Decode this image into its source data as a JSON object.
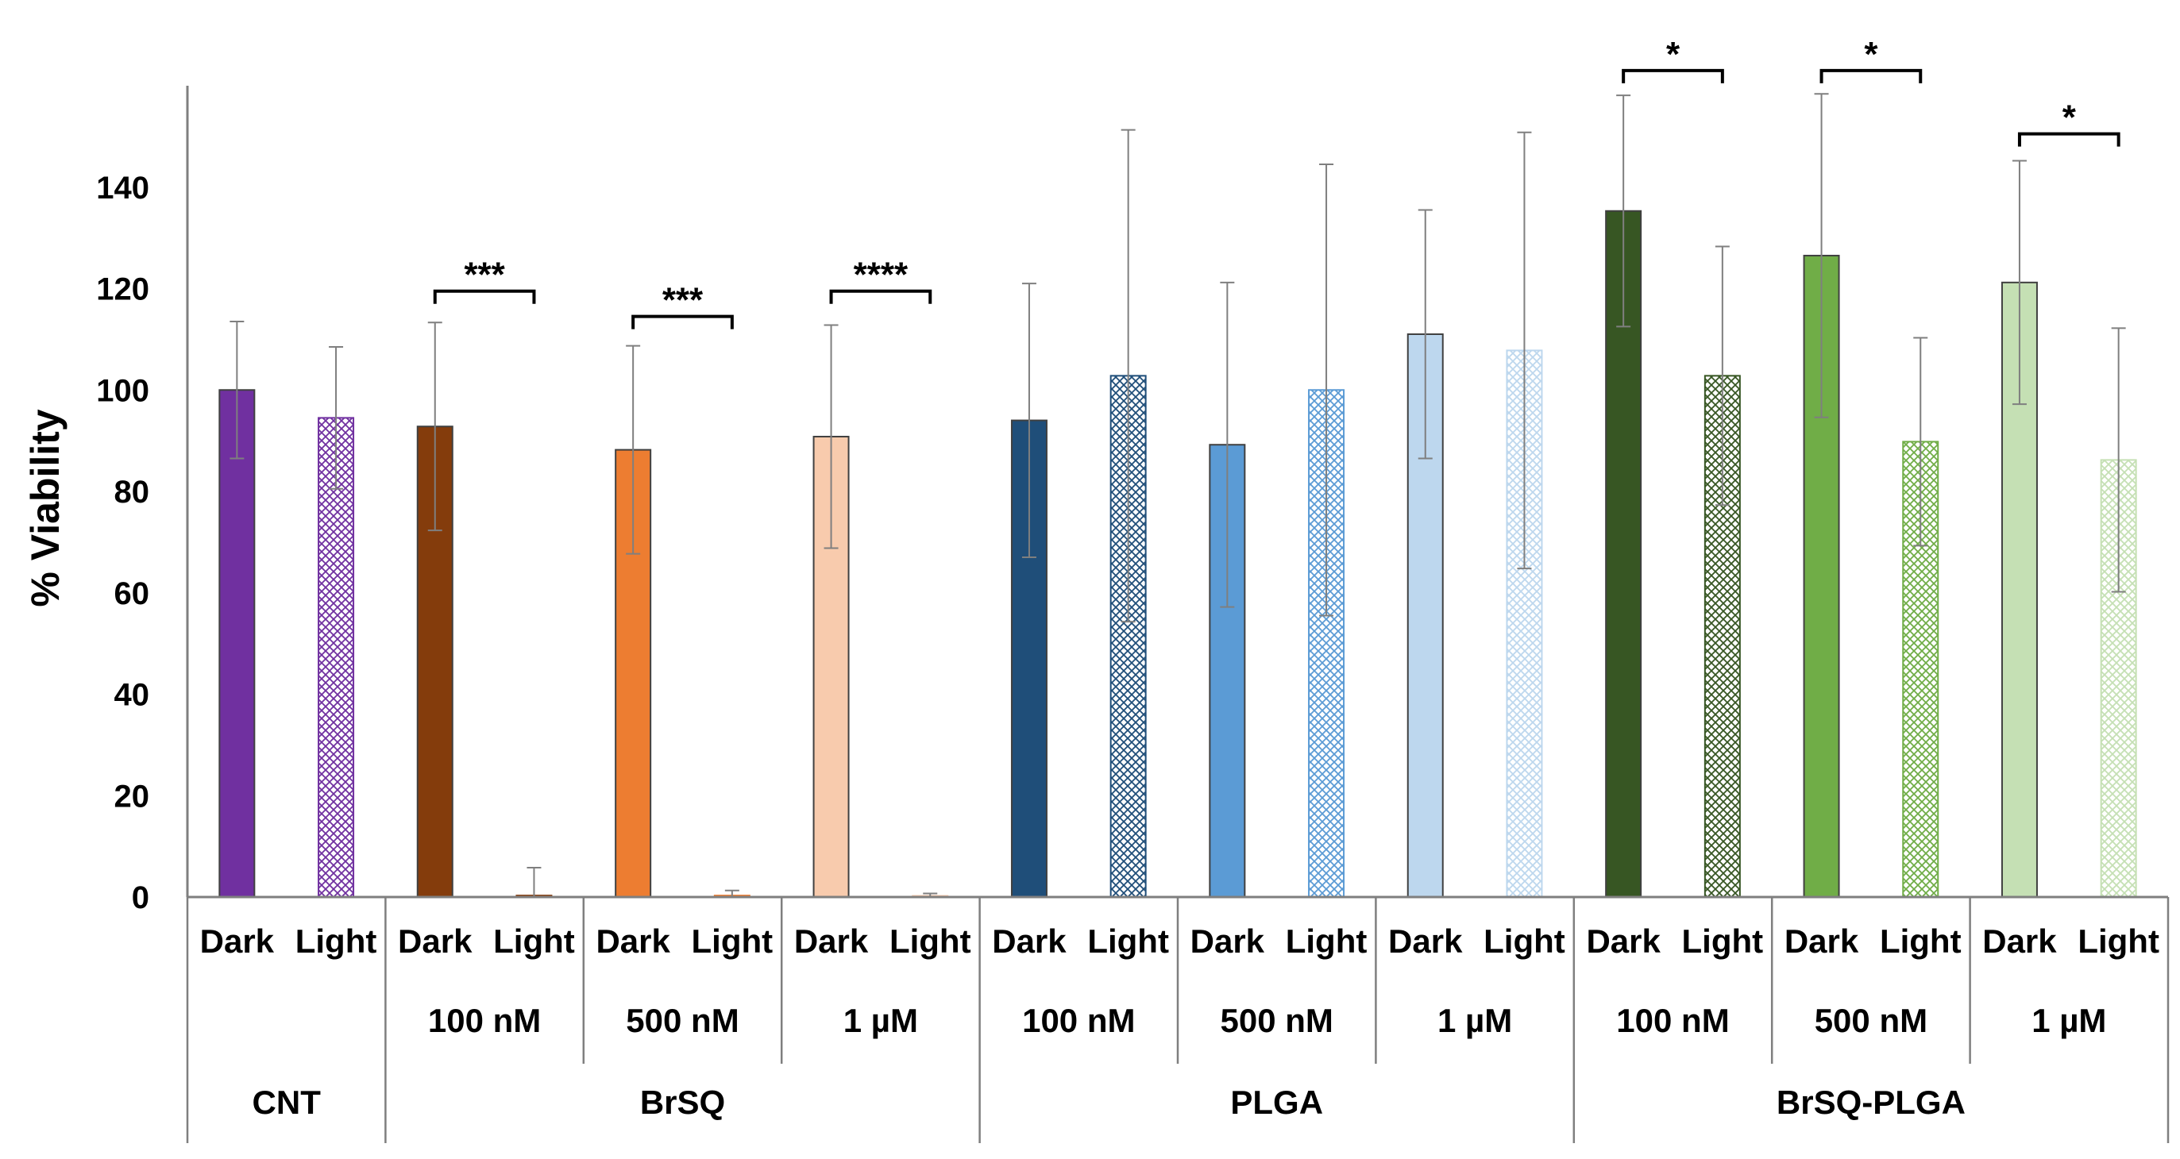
{
  "chart_data": {
    "type": "bar",
    "title": "",
    "xlabel": "",
    "ylabel": "% Viability",
    "ylim": [
      0,
      160
    ],
    "yticks": [
      0,
      20,
      40,
      60,
      80,
      100,
      120,
      140
    ],
    "grid": false,
    "legend": "none",
    "bars": [
      {
        "group": "CNT",
        "conc": "",
        "cond": "Dark",
        "value": 100,
        "err": 13.5,
        "color": "#7030a0",
        "hatch": false
      },
      {
        "group": "CNT",
        "conc": "",
        "cond": "Light",
        "value": 94.5,
        "err": 14,
        "color": "#7030a0",
        "hatch": true
      },
      {
        "group": "BrSQ",
        "conc": "100 nM",
        "cond": "Dark",
        "value": 92.8,
        "err": 20.5,
        "color": "#843c0c",
        "hatch": false
      },
      {
        "group": "BrSQ",
        "conc": "100 nM",
        "cond": "Light",
        "value": 0.3,
        "err": 5.5,
        "color": "#843c0c",
        "hatch": true
      },
      {
        "group": "BrSQ",
        "conc": "500 nM",
        "cond": "Dark",
        "value": 88.2,
        "err": 20.5,
        "color": "#ed7d31",
        "hatch": false
      },
      {
        "group": "BrSQ",
        "conc": "500 nM",
        "cond": "Light",
        "value": 0.3,
        "err": 1,
        "color": "#ed7d31",
        "hatch": true
      },
      {
        "group": "BrSQ",
        "conc": "1 µM",
        "cond": "Dark",
        "value": 90.8,
        "err": 22,
        "color": "#f8cbad",
        "hatch": false
      },
      {
        "group": "BrSQ",
        "conc": "1 µM",
        "cond": "Light",
        "value": 0.2,
        "err": 0.5,
        "color": "#f8cbad",
        "hatch": true
      },
      {
        "group": "PLGA",
        "conc": "100 nM",
        "cond": "Dark",
        "value": 94,
        "err": 27,
        "color": "#1f4e79",
        "hatch": false
      },
      {
        "group": "PLGA",
        "conc": "100 nM",
        "cond": "Light",
        "value": 102.8,
        "err": 48.5,
        "color": "#1f4e79",
        "hatch": true
      },
      {
        "group": "PLGA",
        "conc": "500 nM",
        "cond": "Dark",
        "value": 89.2,
        "err": 32,
        "color": "#5b9bd5",
        "hatch": false
      },
      {
        "group": "PLGA",
        "conc": "500 nM",
        "cond": "Light",
        "value": 100,
        "err": 44.5,
        "color": "#5b9bd5",
        "hatch": true
      },
      {
        "group": "PLGA",
        "conc": "1 µM",
        "cond": "Dark",
        "value": 111,
        "err": 24.5,
        "color": "#bdd7ee",
        "hatch": false
      },
      {
        "group": "PLGA",
        "conc": "1 µM",
        "cond": "Light",
        "value": 107.8,
        "err": 43,
        "color": "#bdd7ee",
        "hatch": true
      },
      {
        "group": "BrSQ-PLGA",
        "conc": "100 nM",
        "cond": "Dark",
        "value": 135.3,
        "err": 22.8,
        "color": "#375623",
        "hatch": false
      },
      {
        "group": "BrSQ-PLGA",
        "conc": "100 nM",
        "cond": "Light",
        "value": 102.8,
        "err": 25.5,
        "color": "#375623",
        "hatch": true
      },
      {
        "group": "BrSQ-PLGA",
        "conc": "500 nM",
        "cond": "Dark",
        "value": 126.5,
        "err": 31.9,
        "color": "#70ad47",
        "hatch": false
      },
      {
        "group": "BrSQ-PLGA",
        "conc": "500 nM",
        "cond": "Light",
        "value": 89.8,
        "err": 20.5,
        "color": "#70ad47",
        "hatch": true
      },
      {
        "group": "BrSQ-PLGA",
        "conc": "1 µM",
        "cond": "Dark",
        "value": 121.2,
        "err": 24,
        "color": "#c5e0b4",
        "hatch": false
      },
      {
        "group": "BrSQ-PLGA",
        "conc": "1 µM",
        "cond": "Light",
        "value": 86.2,
        "err": 26,
        "color": "#c5e0b4",
        "hatch": true
      }
    ],
    "conc_labels": [
      "",
      "100 nM",
      "500 nM",
      "1 µM",
      "100 nM",
      "500 nM",
      "1 µM",
      "100 nM",
      "500 nM",
      "1 µM"
    ],
    "group_labels": [
      {
        "label": "CNT",
        "from": 0,
        "to": 1
      },
      {
        "label": "BrSQ",
        "from": 1,
        "to": 4
      },
      {
        "label": "PLGA",
        "from": 4,
        "to": 7
      },
      {
        "label": "BrSQ-PLGA",
        "from": 7,
        "to": 10
      }
    ],
    "significance": [
      {
        "pair": 1,
        "label": "***",
        "y": 119.5
      },
      {
        "pair": 2,
        "label": "***",
        "y": 114.5
      },
      {
        "pair": 3,
        "label": "****",
        "y": 119.5
      },
      {
        "pair": 7,
        "label": "*",
        "y": 163
      },
      {
        "pair": 8,
        "label": "*",
        "y": 163
      },
      {
        "pair": 9,
        "label": "*",
        "y": 150.5
      }
    ]
  }
}
